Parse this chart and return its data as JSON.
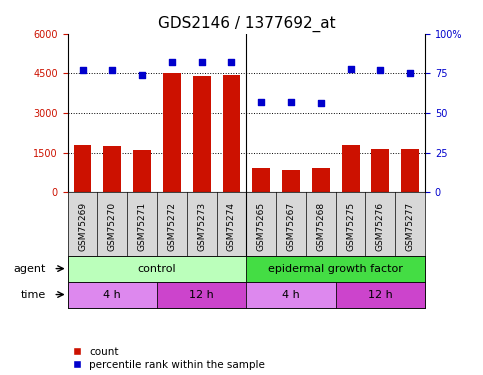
{
  "title": "GDS2146 / 1377692_at",
  "categories": [
    "GSM75269",
    "GSM75270",
    "GSM75271",
    "GSM75272",
    "GSM75273",
    "GSM75274",
    "GSM75265",
    "GSM75267",
    "GSM75268",
    "GSM75275",
    "GSM75276",
    "GSM75277"
  ],
  "counts": [
    1800,
    1750,
    1600,
    4500,
    4400,
    4450,
    900,
    850,
    920,
    1800,
    1650,
    1620
  ],
  "percentiles": [
    77,
    77,
    74,
    82,
    82,
    82,
    57,
    57,
    56,
    78,
    77,
    75
  ],
  "ylim_left": [
    0,
    6000
  ],
  "ylim_right": [
    0,
    100
  ],
  "yticks_left": [
    0,
    1500,
    3000,
    4500,
    6000
  ],
  "yticks_right": [
    0,
    25,
    50,
    75,
    100
  ],
  "bar_color": "#cc1100",
  "dot_color": "#0000cc",
  "control_color_light": "#ccffcc",
  "control_color_dark": "#66dd66",
  "egf_color": "#33cc33",
  "time_4h_color": "#dd88dd",
  "time_12h_color": "#cc44cc",
  "xticklabel_bg": "#d8d8d8",
  "agent_control_label": "control",
  "agent_egf_label": "epidermal growth factor",
  "agent_label": "agent",
  "time_label": "time",
  "legend_count": "count",
  "legend_percentile": "percentile rank within the sample",
  "title_fontsize": 11,
  "tick_fontsize": 7,
  "annot_fontsize": 8,
  "control_n": 6,
  "egf_n": 6,
  "n_4h_control": 3,
  "n_12h_control": 3,
  "n_4h_egf": 3,
  "n_12h_egf": 3
}
